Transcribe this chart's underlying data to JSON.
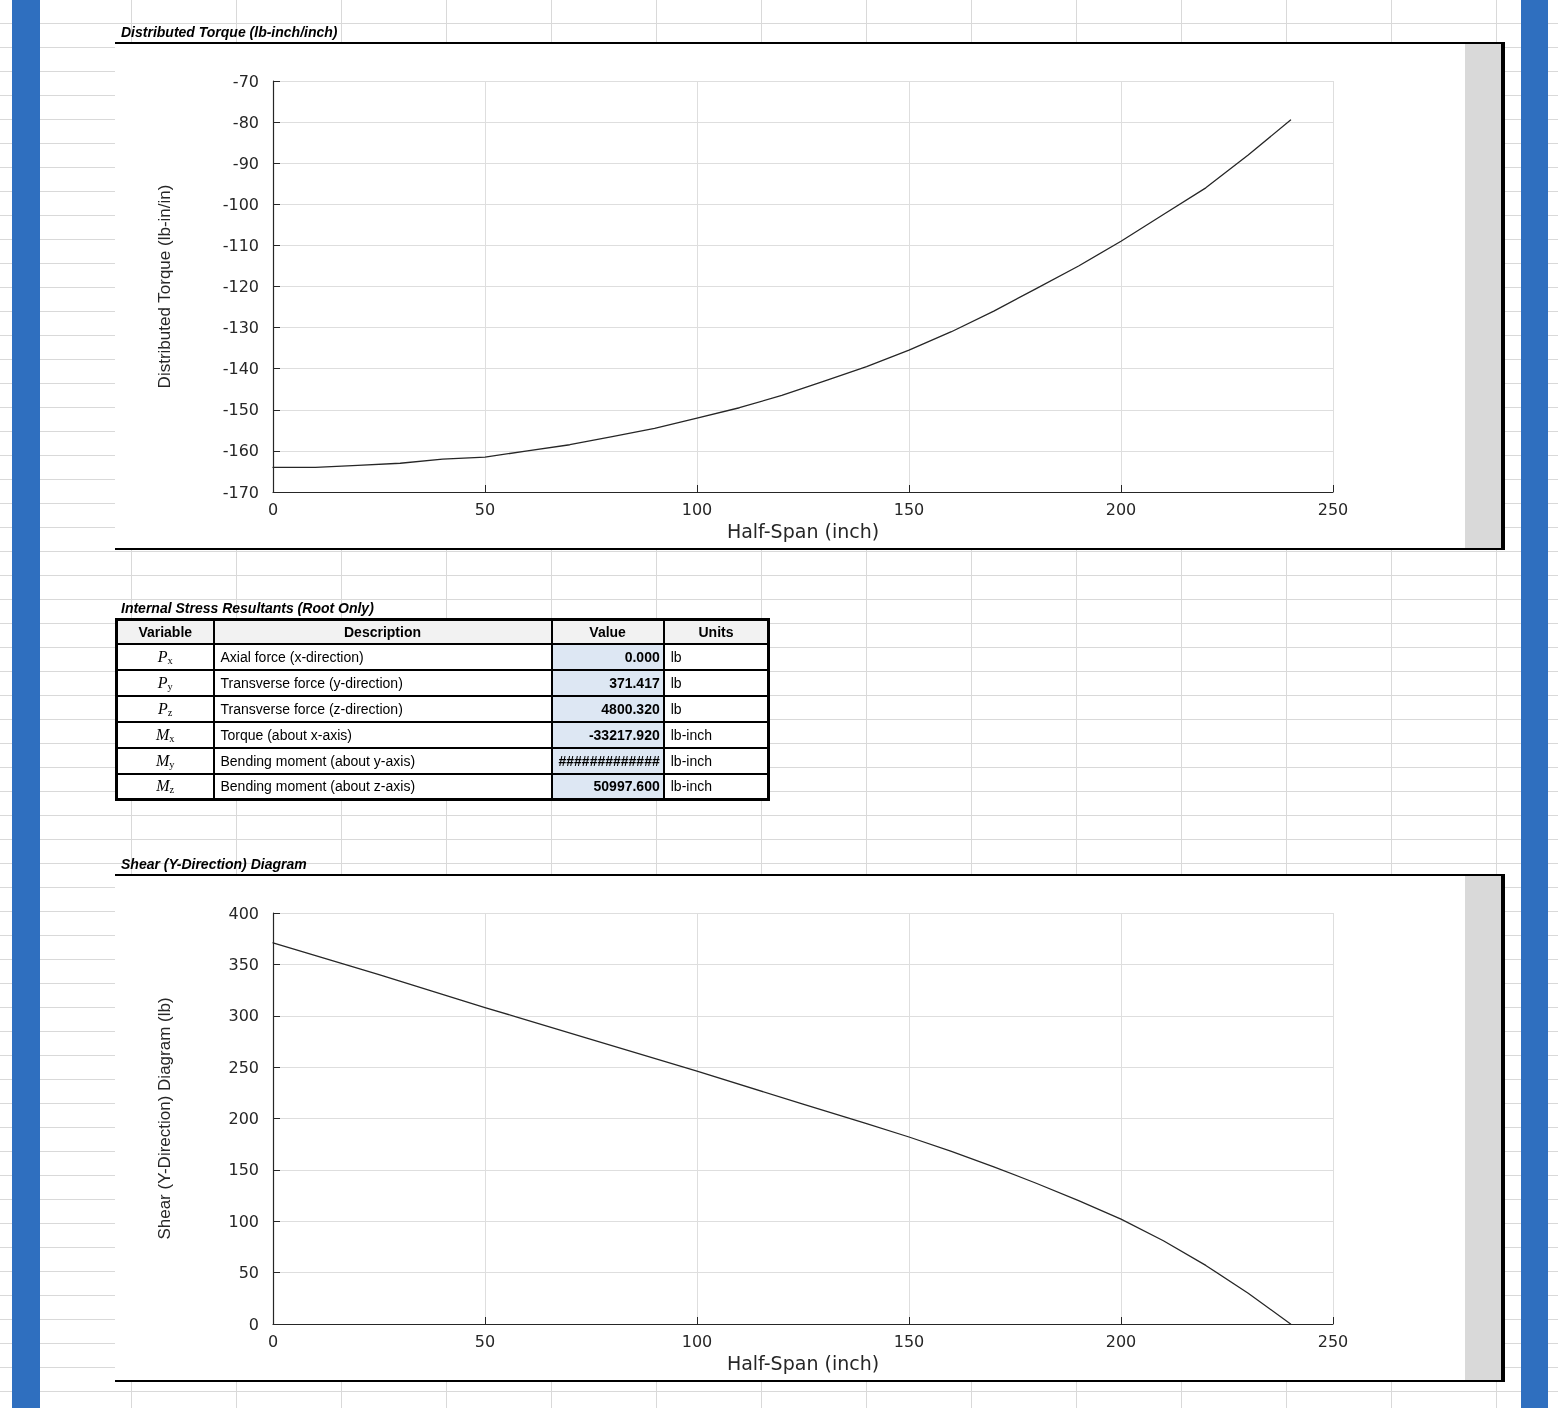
{
  "chart_data": [
    {
      "type": "line",
      "title": "Distributed Torque (lb-inch/inch)",
      "xlabel": "Half-Span (inch)",
      "ylabel": "Distributed Torque (lb-in/in)",
      "x": [
        0,
        10,
        20,
        30,
        40,
        50,
        60,
        70,
        80,
        90,
        100,
        110,
        120,
        130,
        140,
        150,
        160,
        170,
        180,
        190,
        200,
        210,
        220,
        230,
        240
      ],
      "values": [
        -164,
        -164,
        -163.5,
        -163,
        -162,
        -161.5,
        -160,
        -158.5,
        -156.5,
        -154.5,
        -152,
        -149.5,
        -146.5,
        -143,
        -139.5,
        -135.5,
        -131,
        -126,
        -120.5,
        -115,
        -109,
        -102.5,
        -96,
        -88,
        -79.5
      ],
      "color": "#262626",
      "xlim": [
        0,
        250
      ],
      "ylim": [
        -170,
        -70
      ],
      "xticks": [
        0,
        50,
        100,
        150,
        200,
        250
      ],
      "yticks": [
        -170,
        -160,
        -150,
        -140,
        -130,
        -120,
        -110,
        -100,
        -90,
        -80,
        -70
      ],
      "grid": true
    },
    {
      "type": "other",
      "title": "Internal Stress Resultants (Root Only)",
      "categories": [
        "Variable",
        "Description",
        "Value",
        "Units"
      ],
      "annotations": [
        "P$_{x}$",
        "Axial force (x-direction)",
        "0.000",
        "lb",
        "P$_{y}$",
        "Transverse force (y-direction)",
        "371.417",
        "lb",
        "P$_{z}$",
        "Transverse force (z-direction)",
        "4800.320",
        "lb",
        "M$_{x}$",
        "Torque (about x-axis)",
        "-33217.920",
        "lb-inch",
        "M$_{y}$",
        "Bending moment (about y-axis)",
        "#############",
        "lb-inch",
        "M$_{z}$",
        "Bending moment (about z-axis)",
        "50997.600",
        "lb-inch"
      ]
    },
    {
      "type": "line",
      "title": "Shear (Y-Direction) Diagram",
      "xlabel": "Half-Span (inch)",
      "ylabel": "Shear (Y-Direction) Diagram (lb)",
      "x": [
        0,
        25,
        50,
        75,
        100,
        125,
        140,
        150,
        160,
        170,
        180,
        190,
        200,
        210,
        220,
        230,
        240
      ],
      "values": [
        371,
        340,
        308,
        277,
        246,
        214,
        195,
        182,
        168,
        153,
        137,
        120,
        102,
        81,
        57,
        30,
        0
      ],
      "color": "#262626",
      "xlim": [
        0,
        250
      ],
      "ylim": [
        0,
        400
      ],
      "xticks": [
        0,
        50,
        100,
        150,
        200,
        250
      ],
      "yticks": [
        0,
        50,
        100,
        150,
        200,
        250,
        300,
        350,
        400
      ],
      "grid": true
    }
  ]
}
